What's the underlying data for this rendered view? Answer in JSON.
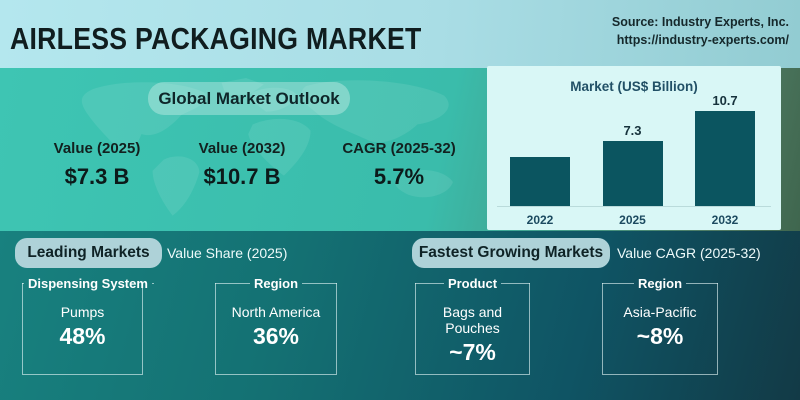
{
  "header": {
    "title": "AIRLESS PACKAGING MARKET",
    "source_line1": "Source: Industry Experts, Inc.",
    "source_line2": "https://industry-experts.com/"
  },
  "outlook": {
    "badge": "Global Market Outlook",
    "stats": [
      {
        "label": "Value (2025)",
        "value": "$7.3 B"
      },
      {
        "label": "Value (2032)",
        "value": "$10.7 B"
      },
      {
        "label": "CAGR (2025-32)",
        "value": "5.7%"
      }
    ]
  },
  "chart_data": {
    "type": "bar",
    "title": "Market (US$ Billion)",
    "categories": [
      "2022",
      "2025",
      "2032"
    ],
    "values": [
      5.5,
      7.3,
      10.7
    ],
    "data_labels": [
      "",
      "7.3",
      "10.7"
    ],
    "ylim": [
      0,
      12
    ],
    "grid": false,
    "legend": "none",
    "bar_color": "#0b5560",
    "panel_bg": "#d9f7f6",
    "note_unlabeled": "2022 bar value estimated from bar height; no data label shown"
  },
  "leading": {
    "badge": "Leading Markets",
    "subtitle": "Value Share (2025)",
    "cards": [
      {
        "category": "Dispensing System",
        "name": "Pumps",
        "value": "48%"
      },
      {
        "category": "Region",
        "name": "North America",
        "value": "36%"
      }
    ]
  },
  "fastest": {
    "badge": "Fastest Growing Markets",
    "subtitle": "Value CAGR (2025-32)",
    "cards": [
      {
        "category": "Product",
        "name": "Bags and Pouches",
        "value": "~7%"
      },
      {
        "category": "Region",
        "name": "Asia-Pacific",
        "value": "~8%"
      }
    ]
  },
  "colors": {
    "header_bg": "#a9dde5",
    "accent_teal": "#3abcab",
    "sage_green": "#4f7a62",
    "bottom_teal_dark": "#123a46",
    "bar_dark_teal": "#0b5560",
    "panel_light": "#d9f7f6",
    "badge_light": "#aed2d8",
    "text_dark": "#101d1f",
    "text_white": "#ffffff"
  }
}
